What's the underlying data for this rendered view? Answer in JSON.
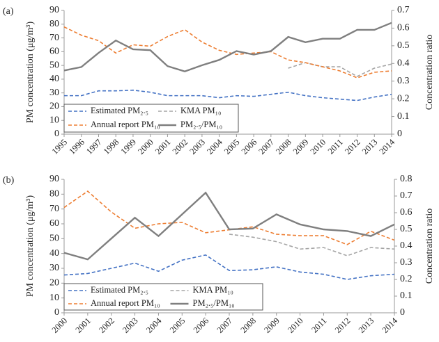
{
  "chart_data": [
    {
      "type": "line",
      "label": "(a)",
      "y_label": "PM concentration (μg/m³)",
      "y2_label": "Concentration ratio",
      "x": [
        1995,
        1996,
        1997,
        1998,
        1999,
        2000,
        2001,
        2002,
        2003,
        2004,
        2005,
        2006,
        2007,
        2008,
        2009,
        2010,
        2011,
        2012,
        2013,
        2014
      ],
      "xlim": [
        1995,
        2014
      ],
      "xticks": [
        1995,
        1996,
        1997,
        1998,
        1999,
        2000,
        2001,
        2002,
        2003,
        2004,
        2005,
        2006,
        2007,
        2008,
        2009,
        2010,
        2011,
        2012,
        2013,
        2014
      ],
      "ylim": [
        0,
        90
      ],
      "yticks": [
        0,
        10,
        20,
        30,
        40,
        50,
        60,
        70,
        80,
        90
      ],
      "y2lim": [
        0,
        0.7
      ],
      "y2ticks": [
        0,
        0.1,
        0.2,
        0.3,
        0.4,
        0.5,
        0.6,
        0.7
      ],
      "series": [
        {
          "name": "Estimated PM₂.₅",
          "color": "#4472c4",
          "dash": true,
          "values": [
            28,
            28,
            31.5,
            31.5,
            32,
            30.5,
            28,
            28,
            28,
            26.5,
            28,
            27.5,
            29,
            30.5,
            28,
            26.5,
            25.5,
            24.5,
            27,
            29
          ]
        },
        {
          "name": "KMA PM₁₀",
          "color": "#a5a5a5",
          "dash": true,
          "values": [
            null,
            null,
            null,
            null,
            null,
            null,
            null,
            null,
            null,
            null,
            null,
            null,
            null,
            48,
            52,
            49,
            49,
            42,
            48,
            51
          ]
        },
        {
          "name": "Annual report PM₁₀",
          "color": "#ed7d31",
          "dash": true,
          "values": [
            78,
            72,
            68,
            59,
            65,
            64,
            71,
            76,
            67,
            61,
            58,
            59,
            60,
            54,
            52,
            49,
            46,
            41,
            45,
            46
          ]
        },
        {
          "name": "PM₂.₅/PM₁₀",
          "color": "#7f7f7f",
          "dash": false,
          "axis": "y2",
          "values": [
            0.36,
            0.38,
            0.46,
            0.53,
            0.48,
            0.475,
            0.385,
            0.355,
            0.39,
            0.42,
            0.47,
            0.45,
            0.47,
            0.55,
            0.52,
            0.54,
            0.54,
            0.59,
            0.59,
            0.63
          ]
        }
      ]
    },
    {
      "type": "line",
      "label": "(b)",
      "y_label": "PM concentration (μg/m³)",
      "y2_label": "Concentration ratio",
      "x": [
        2000,
        2001,
        2002,
        2003,
        2004,
        2005,
        2006,
        2007,
        2008,
        2009,
        2010,
        2011,
        2012,
        2013,
        2014
      ],
      "xlim": [
        2000,
        2014
      ],
      "xticks": [
        2000,
        2001,
        2002,
        2003,
        2004,
        2005,
        2006,
        2007,
        2008,
        2009,
        2010,
        2011,
        2012,
        2013,
        2014
      ],
      "ylim": [
        0,
        90
      ],
      "yticks": [
        0,
        10,
        20,
        30,
        40,
        50,
        60,
        70,
        80,
        90
      ],
      "y2lim": [
        0,
        0.8
      ],
      "y2ticks": [
        0,
        0.1,
        0.2,
        0.3,
        0.4,
        0.5,
        0.6,
        0.7,
        0.8
      ],
      "series": [
        {
          "name": "Estimated PM₂.₅",
          "color": "#4472c4",
          "dash": true,
          "values": [
            25.5,
            26.5,
            30,
            33.5,
            28,
            35.5,
            39,
            28.5,
            29,
            31,
            27.5,
            26,
            22.5,
            25,
            26
          ]
        },
        {
          "name": "KMA PM₁₀",
          "color": "#a5a5a5",
          "dash": true,
          "values": [
            null,
            null,
            null,
            null,
            null,
            null,
            null,
            53,
            51,
            48,
            43,
            44,
            38.5,
            44,
            43
          ]
        },
        {
          "name": "Annual report PM₁₀",
          "color": "#ed7d31",
          "dash": true,
          "values": [
            71,
            82,
            68,
            57,
            60,
            61,
            54,
            56,
            58,
            53,
            52,
            52,
            46,
            55,
            49
          ]
        },
        {
          "name": "PM₂.₅/PM₁₀",
          "color": "#7f7f7f",
          "dash": false,
          "axis": "y2",
          "values": [
            0.36,
            0.32,
            0.445,
            0.57,
            0.46,
            0.59,
            0.72,
            0.5,
            0.505,
            0.59,
            0.53,
            0.5,
            0.49,
            0.46,
            0.53
          ]
        }
      ]
    }
  ]
}
